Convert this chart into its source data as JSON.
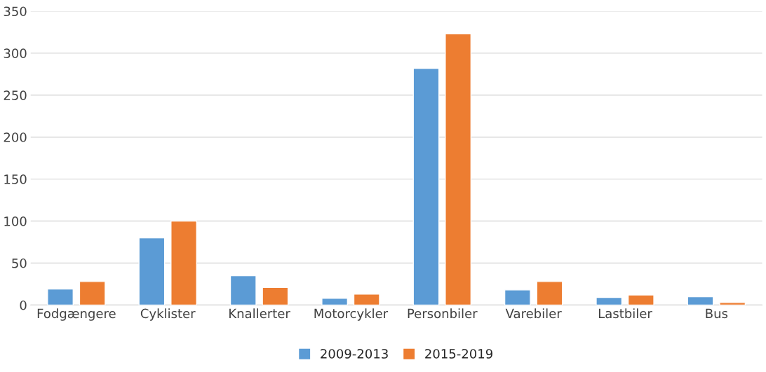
{
  "chart_data": {
    "type": "bar",
    "categories": [
      "Fodgængere",
      "Cyklister",
      "Knallerter",
      "Motorcykler",
      "Personbiler",
      "Varebiler",
      "Lastbiler",
      "Bus"
    ],
    "series": [
      {
        "name": "2009-2013",
        "color": "#5b9bd5",
        "values": [
          19,
          80,
          35,
          8,
          282,
          18,
          9,
          10
        ]
      },
      {
        "name": "2015-2019",
        "color": "#ed7d31",
        "values": [
          28,
          100,
          21,
          13,
          323,
          28,
          12,
          3
        ]
      }
    ],
    "ylim": [
      0,
      350
    ],
    "yticks": [
      0,
      50,
      100,
      150,
      200,
      250,
      300,
      350
    ],
    "grid": "y",
    "legend": "bottom"
  }
}
